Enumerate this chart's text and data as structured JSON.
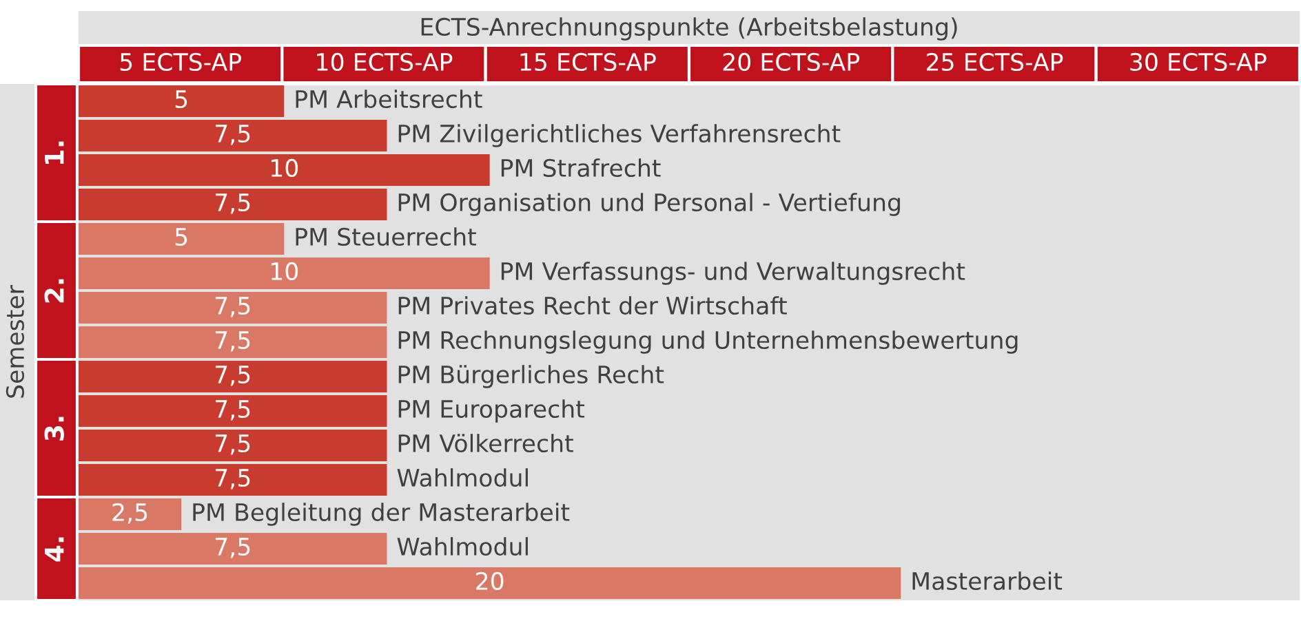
{
  "chart_data": {
    "type": "bar",
    "orientation": "horizontal",
    "stacked": true,
    "xlabel": "ECTS-Anrechnungspunkte (Arbeitsbelastung)",
    "ylabel": "Semester",
    "categories": [
      "PM Arbeitsrecht",
      "PM Zivilgerichtliches Verfahrensrecht",
      "PM Strafrecht",
      "PM Organisation und Personal - Vertiefung",
      "PM Steuerrecht",
      "PM Verfassungs- und Verwaltungsrecht",
      "PM Privates Recht der Wirtschaft",
      "PM Rechnungslegung und Unternehmensbewertung",
      "PM Bürgerliches Recht",
      "PM Europarecht",
      "PM Völkerrecht",
      "Wahlmodul",
      "PM Begleitung der Masterarbeit",
      "Wahlmodul",
      "Masterarbeit"
    ],
    "series": [
      {
        "name": "1.",
        "color": "#c83c30",
        "values": [
          5,
          7.5,
          10,
          7.5,
          null,
          null,
          null,
          null,
          null,
          null,
          null,
          null,
          null,
          null,
          null
        ],
        "value_labels": [
          "5",
          "7,5",
          "10",
          "7,5",
          null,
          null,
          null,
          null,
          null,
          null,
          null,
          null,
          null,
          null,
          null
        ]
      },
      {
        "name": "2.",
        "color": "#da7866",
        "values": [
          null,
          null,
          null,
          null,
          5,
          10,
          7.5,
          7.5,
          null,
          null,
          null,
          null,
          null,
          null,
          null
        ],
        "value_labels": [
          null,
          null,
          null,
          null,
          "5",
          "10",
          "7,5",
          "7,5",
          null,
          null,
          null,
          null,
          null,
          null,
          null
        ]
      },
      {
        "name": "3.",
        "color": "#c83c30",
        "values": [
          null,
          null,
          null,
          null,
          null,
          null,
          null,
          null,
          7.5,
          7.5,
          7.5,
          7.5,
          null,
          null,
          null
        ],
        "value_labels": [
          null,
          null,
          null,
          null,
          null,
          null,
          null,
          null,
          "7,5",
          "7,5",
          "7,5",
          "7,5",
          null,
          null,
          null
        ]
      },
      {
        "name": "4.",
        "color": "#da7866",
        "values": [
          null,
          null,
          null,
          null,
          null,
          null,
          null,
          null,
          null,
          null,
          null,
          null,
          2.5,
          7.5,
          20
        ],
        "value_labels": [
          null,
          null,
          null,
          null,
          null,
          null,
          null,
          null,
          null,
          null,
          null,
          null,
          "2,5",
          "7,5",
          "20"
        ]
      }
    ],
    "xlim": [
      0,
      29.7
    ],
    "annotations": [
      "5 ECTS-AP",
      "10 ECTS-AP",
      "15 ECTS-AP",
      "20 ECTS-AP",
      "25 ECTS-AP",
      "30 ECTS-AP"
    ]
  }
}
